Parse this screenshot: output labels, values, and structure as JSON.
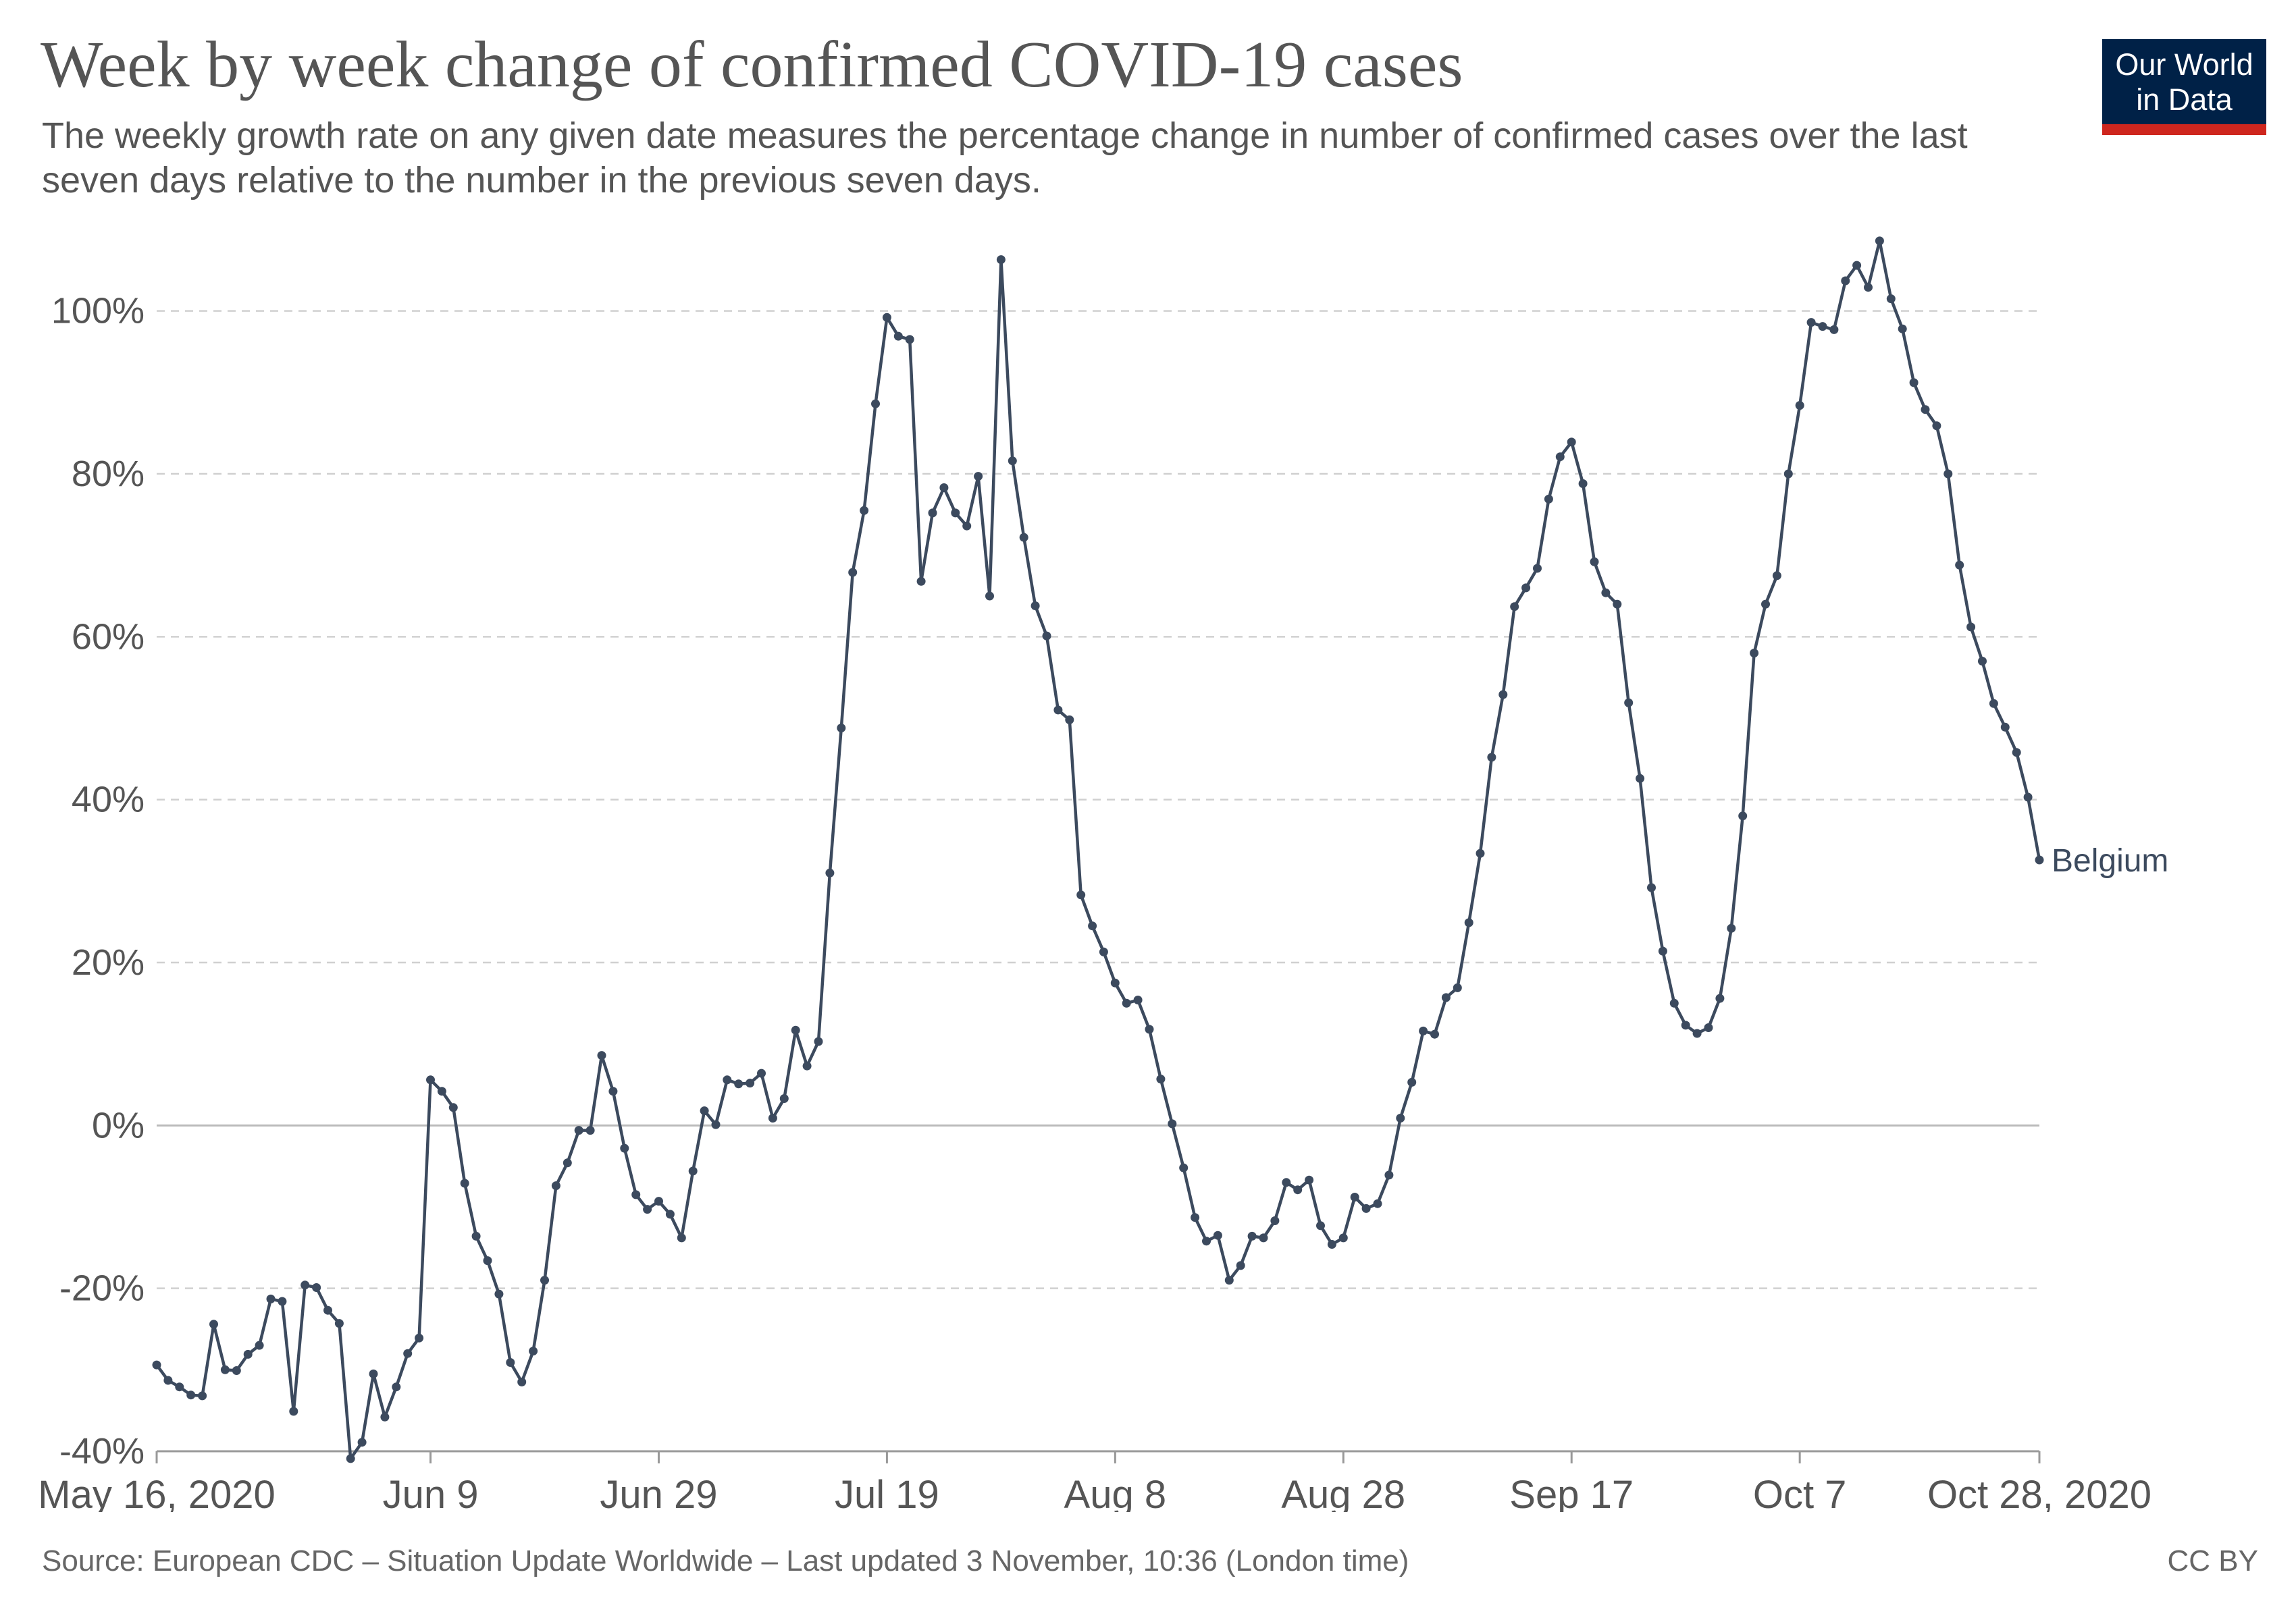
{
  "title": "Week by week change of confirmed COVID-19 cases",
  "subtitle": "The weekly growth rate on any given date measures the percentage change in number of confirmed cases over the last seven days relative to the number in the previous seven days.",
  "logo": {
    "line1": "Our World",
    "line2": "in Data"
  },
  "source": "Source: European CDC – Situation Update Worldwide – Last updated 3 November, 10:36 (London time)",
  "license": "CC BY",
  "colors": {
    "line": "#3c4a5e",
    "grid": "#d0d0d0",
    "zero": "#bbbbbb",
    "text": "#555555",
    "logo_bg": "#002147",
    "logo_bar": "#ce261e"
  },
  "chart_data": {
    "type": "line",
    "title": "",
    "xlabel": "",
    "ylabel": "",
    "ylim": [
      -40,
      110
    ],
    "xlim": [
      "2020-05-16",
      "2020-10-28"
    ],
    "grid": true,
    "y_ticks": [
      -40,
      -20,
      0,
      20,
      40,
      60,
      80,
      100
    ],
    "y_tick_labels": [
      "-40%",
      "-20%",
      "0%",
      "20%",
      "40%",
      "60%",
      "80%",
      "100%"
    ],
    "x_ticks": [
      "2020-05-16",
      "2020-06-09",
      "2020-06-29",
      "2020-07-19",
      "2020-08-08",
      "2020-08-28",
      "2020-09-17",
      "2020-10-07",
      "2020-10-28"
    ],
    "x_tick_labels": [
      "May 16, 2020",
      "Jun 9",
      "Jun 29",
      "Jul 19",
      "Aug 8",
      "Aug 28",
      "Sep 17",
      "Oct 7",
      "Oct 28, 2020"
    ],
    "series": [
      {
        "name": "Belgium",
        "start_date": "2020-05-16",
        "values": [
          -29.4,
          -31.3,
          -32.1,
          -33.1,
          -33.2,
          -24.4,
          -30.0,
          -30.1,
          -28.1,
          -27.0,
          -21.3,
          -21.6,
          -35.1,
          -19.6,
          -19.9,
          -22.7,
          -24.3,
          -40.9,
          -38.9,
          -30.5,
          -35.8,
          -32.1,
          -28.0,
          -26.1,
          5.6,
          4.2,
          2.2,
          -7.1,
          -13.6,
          -16.6,
          -20.7,
          -29.1,
          -31.5,
          -27.7,
          -19.0,
          -7.4,
          -4.6,
          -0.6,
          -0.6,
          8.6,
          4.2,
          -2.8,
          -8.5,
          -10.3,
          -9.3,
          -10.9,
          -13.8,
          -5.6,
          1.8,
          0.1,
          5.6,
          5.1,
          5.2,
          6.4,
          0.9,
          3.3,
          11.7,
          7.3,
          10.3,
          31.0,
          48.8,
          67.9,
          75.5,
          88.6,
          99.2,
          96.9,
          96.5,
          66.8,
          75.2,
          78.3,
          75.2,
          73.6,
          79.7,
          65.0,
          106.3,
          81.6,
          72.2,
          63.8,
          60.1,
          51.0,
          49.8,
          28.3,
          24.5,
          21.3,
          17.5,
          15.0,
          15.4,
          11.8,
          5.7,
          0.2,
          -5.2,
          -11.3,
          -14.2,
          -13.5,
          -19.0,
          -17.2,
          -13.6,
          -13.8,
          -11.7,
          -7.0,
          -7.9,
          -6.7,
          -12.3,
          -14.6,
          -13.8,
          -8.8,
          -10.2,
          -9.6,
          -6.1,
          0.9,
          5.3,
          11.6,
          11.2,
          15.7,
          16.9,
          24.9,
          33.4,
          45.2,
          52.9,
          63.7,
          66.0,
          68.4,
          76.9,
          82.1,
          83.9,
          78.8,
          69.2,
          65.4,
          64.0,
          51.9,
          42.6,
          29.2,
          21.4,
          15.0,
          12.3,
          11.3,
          12.0,
          15.6,
          24.2,
          38.0,
          58.0,
          64.0,
          67.5,
          80.0,
          88.4,
          98.6,
          98.1,
          97.7,
          103.7,
          105.6,
          102.9,
          108.6,
          101.5,
          97.8,
          91.2,
          87.9,
          85.9,
          80.0,
          68.8,
          61.2,
          57.0,
          51.8,
          48.9,
          45.8,
          40.3,
          32.6
        ]
      }
    ]
  }
}
